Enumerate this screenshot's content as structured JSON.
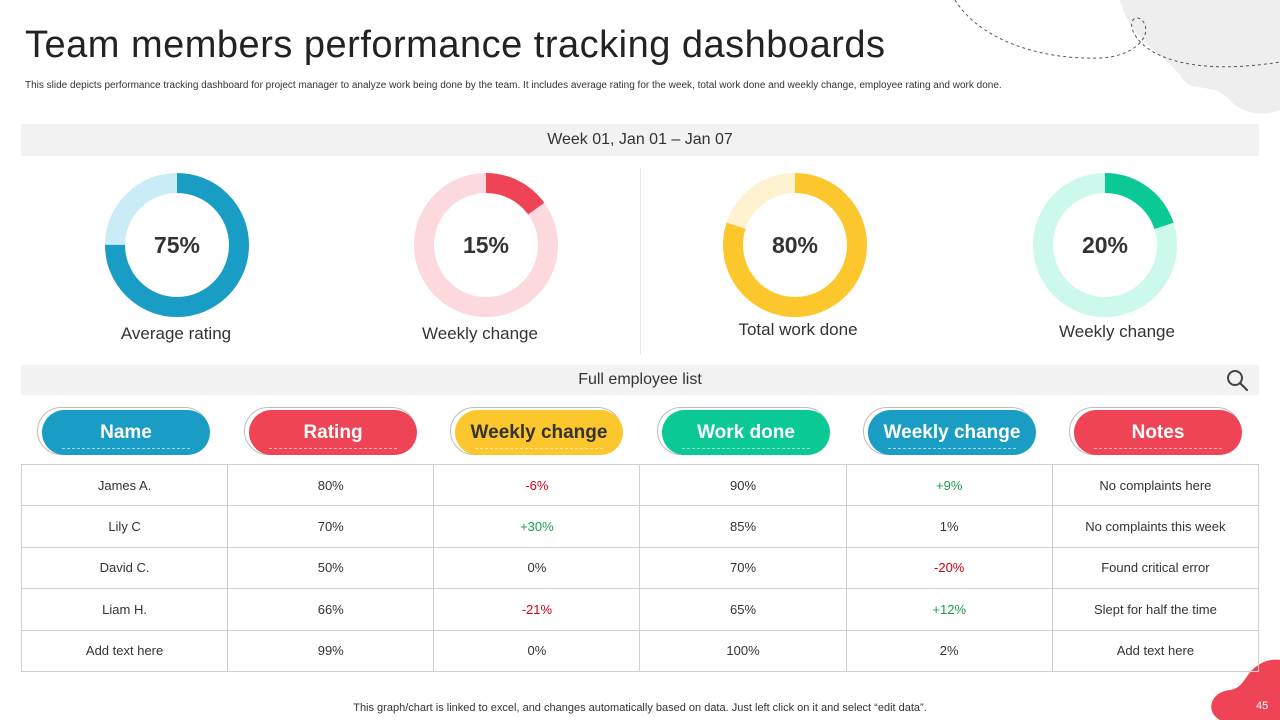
{
  "header": {
    "title": "Team members performance tracking dashboards",
    "subtitle": "This slide depicts performance tracking dashboard for project manager to analyze work being done by the team. It includes average rating for the week, total work done and weekly change, employee rating and work done."
  },
  "week_band": {
    "label": "Week 01, Jan 01 – Jan 07"
  },
  "metrics": [
    {
      "value": 75,
      "display": "75%",
      "label": "Average rating",
      "color": "#1a9dc4",
      "track": "#c9ecf6"
    },
    {
      "value": 15,
      "display": "15%",
      "label": "Weekly change",
      "color": "#ee4455",
      "track": "#fcd9de"
    },
    {
      "value": 80,
      "display": "80%",
      "label": "Total work done",
      "color": "#fcc62d",
      "track": "#fff2d1"
    },
    {
      "value": 20,
      "display": "20%",
      "label": "Weekly change",
      "color": "#0ac994",
      "track": "#cdf8ec"
    }
  ],
  "list_band": {
    "label": "Full employee list",
    "icon": "search-icon"
  },
  "columns": [
    {
      "label": "Name",
      "color": "#1a9dc4",
      "text_color": "#ffffff"
    },
    {
      "label": "Rating",
      "color": "#ee4455",
      "text_color": "#ffffff"
    },
    {
      "label": "Weekly change",
      "color": "#fcc62d",
      "text_color": "#333333"
    },
    {
      "label": "Work done",
      "color": "#0ac994",
      "text_color": "#ffffff"
    },
    {
      "label": "Weekly change",
      "color": "#1a9dc4",
      "text_color": "#ffffff"
    },
    {
      "label": "Notes",
      "color": "#ee4455",
      "text_color": "#ffffff"
    }
  ],
  "rows": [
    [
      "James A.",
      "80%",
      "-6%",
      "90%",
      "+9%",
      "No complaints here"
    ],
    [
      "Lily C",
      "70%",
      "+30%",
      "85%",
      "1%",
      "No complaints this week"
    ],
    [
      "David  C.",
      "50%",
      "0%",
      "70%",
      "-20%",
      "Found critical error"
    ],
    [
      "Liam H.",
      "66%",
      "-21%",
      "65%",
      "+12%",
      "Slept for half the time"
    ],
    [
      "Add text here",
      "99%",
      "0%",
      "100%",
      "2%",
      "Add text here"
    ]
  ],
  "footer": {
    "note": "This graph/chart is linked to excel,  and changes automatically based on data. Just left click on it and select “edit data”.",
    "page_number": "45"
  },
  "colors": {
    "negative": "#d0021b",
    "positive": "#1a9e4a",
    "accent": "#ee4455",
    "band": "#f2f2f2"
  }
}
